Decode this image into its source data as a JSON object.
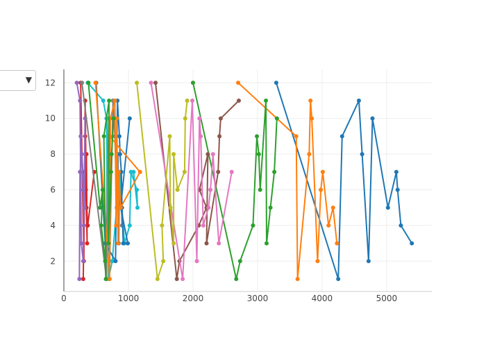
{
  "controls": {
    "dropdown": {
      "selected_label": "",
      "arrow_icon": "triangle-down-icon"
    }
  },
  "chart_data": {
    "type": "line",
    "title": "",
    "xlabel": "",
    "ylabel": "",
    "xlim": [
      0,
      5700
    ],
    "ylim": [
      0.3,
      12.75
    ],
    "x_ticks": [
      0,
      1000,
      2000,
      3000,
      4000,
      5000
    ],
    "y_ticks": [
      2,
      4,
      6,
      8,
      10,
      12
    ],
    "grid": true,
    "legend": "none",
    "series": [
      {
        "color": "#1f77b4",
        "points": [
          [
            3290,
            12
          ],
          [
            4250,
            1
          ],
          [
            4310,
            9
          ],
          [
            4570,
            11
          ],
          [
            4620,
            8
          ],
          [
            4720,
            2
          ],
          [
            4780,
            10
          ],
          [
            5020,
            5
          ],
          [
            5150,
            7
          ],
          [
            5170,
            6
          ],
          [
            5220,
            4
          ],
          [
            5390,
            3
          ]
        ]
      },
      {
        "color": "#ff7f0e",
        "points": [
          [
            2700,
            12
          ],
          [
            3600,
            9
          ],
          [
            3620,
            1
          ],
          [
            3800,
            8
          ],
          [
            3820,
            11
          ],
          [
            3840,
            10
          ],
          [
            3930,
            2
          ],
          [
            3980,
            6
          ],
          [
            4010,
            7
          ],
          [
            4100,
            4
          ],
          [
            4170,
            5
          ],
          [
            4230,
            3
          ]
        ]
      },
      {
        "color": "#2ca02c",
        "points": [
          [
            2000,
            12
          ],
          [
            2670,
            1
          ],
          [
            2730,
            2
          ],
          [
            2930,
            4
          ],
          [
            2990,
            9
          ],
          [
            3020,
            8
          ],
          [
            3040,
            6
          ],
          [
            3130,
            11
          ],
          [
            3140,
            3
          ],
          [
            3200,
            5
          ],
          [
            3260,
            7
          ],
          [
            3300,
            10
          ]
        ]
      },
      {
        "color": "#d62728",
        "points": [
          [
            260,
            12
          ],
          [
            310,
            2
          ],
          [
            330,
            11
          ],
          [
            350,
            5
          ],
          [
            330,
            9
          ],
          [
            300,
            1
          ],
          [
            320,
            7
          ],
          [
            350,
            8
          ],
          [
            360,
            3
          ],
          [
            340,
            6
          ],
          [
            370,
            4
          ],
          [
            470,
            7
          ]
        ]
      },
      {
        "color": "#9467bd",
        "points": [
          [
            200,
            12
          ],
          [
            250,
            11
          ],
          [
            270,
            3
          ],
          [
            300,
            2
          ],
          [
            330,
            10
          ],
          [
            320,
            5
          ],
          [
            280,
            8
          ],
          [
            250,
            7
          ],
          [
            240,
            1
          ],
          [
            260,
            9
          ],
          [
            300,
            6
          ],
          [
            310,
            4
          ]
        ]
      },
      {
        "color": "#8c564b",
        "points": [
          [
            1420,
            12
          ],
          [
            1750,
            1
          ],
          [
            1790,
            2
          ],
          [
            2090,
            4
          ],
          [
            2210,
            5
          ],
          [
            2100,
            6
          ],
          [
            2230,
            8
          ],
          [
            2210,
            3
          ],
          [
            2390,
            7
          ],
          [
            2410,
            9
          ],
          [
            2430,
            10
          ],
          [
            2710,
            11
          ]
        ]
      },
      {
        "color": "#e377c2",
        "points": [
          [
            1350,
            12
          ],
          [
            1840,
            1
          ],
          [
            1990,
            11
          ],
          [
            2060,
            2
          ],
          [
            2100,
            10
          ],
          [
            2120,
            9
          ],
          [
            2160,
            4
          ],
          [
            2240,
            5
          ],
          [
            2270,
            6
          ],
          [
            2310,
            8
          ],
          [
            2400,
            3
          ],
          [
            2600,
            7
          ]
        ]
      },
      {
        "color": "#7f7f7f",
        "points": [
          [
            280,
            12
          ],
          [
            660,
            1
          ],
          [
            670,
            10
          ],
          [
            710,
            2
          ],
          [
            760,
            11
          ],
          [
            790,
            9
          ],
          [
            820,
            5
          ],
          [
            840,
            8
          ],
          [
            850,
            3
          ],
          [
            860,
            6
          ],
          [
            880,
            7
          ],
          [
            900,
            4
          ]
        ]
      },
      {
        "color": "#bcbd22",
        "points": [
          [
            1130,
            12
          ],
          [
            1450,
            1
          ],
          [
            1540,
            2
          ],
          [
            1520,
            4
          ],
          [
            1640,
            9
          ],
          [
            1650,
            5
          ],
          [
            1700,
            3
          ],
          [
            1700,
            8
          ],
          [
            1760,
            6
          ],
          [
            1870,
            7
          ],
          [
            1880,
            10
          ],
          [
            1910,
            11
          ]
        ]
      },
      {
        "color": "#17becf",
        "points": [
          [
            370,
            12
          ],
          [
            610,
            11
          ],
          [
            660,
            10
          ],
          [
            690,
            1
          ],
          [
            750,
            2
          ],
          [
            860,
            7
          ],
          [
            940,
            3
          ],
          [
            1020,
            4
          ],
          [
            1040,
            7
          ],
          [
            1130,
            6
          ],
          [
            1140,
            5
          ],
          [
            1080,
            7
          ]
        ]
      },
      {
        "color": "#1f77b4",
        "points": [
          [
            500,
            12
          ],
          [
            640,
            3
          ],
          [
            800,
            2
          ],
          [
            830,
            11
          ],
          [
            860,
            9
          ],
          [
            870,
            8
          ],
          [
            890,
            7
          ],
          [
            900,
            5
          ],
          [
            920,
            3
          ],
          [
            990,
            3
          ],
          [
            880,
            5
          ],
          [
            1020,
            10
          ]
        ]
      },
      {
        "color": "#ff7f0e",
        "points": [
          [
            490,
            12
          ],
          [
            710,
            1
          ],
          [
            720,
            10
          ],
          [
            790,
            11
          ],
          [
            810,
            4
          ],
          [
            820,
            10
          ],
          [
            840,
            3
          ],
          [
            850,
            7
          ],
          [
            880,
            5
          ],
          [
            1180,
            7
          ],
          [
            710,
            9
          ],
          [
            700,
            3
          ]
        ]
      },
      {
        "color": "#2ca02c",
        "points": [
          [
            380,
            12
          ],
          [
            560,
            5
          ],
          [
            600,
            6
          ],
          [
            580,
            4
          ],
          [
            640,
            2
          ],
          [
            650,
            1
          ],
          [
            620,
            9
          ],
          [
            700,
            11
          ],
          [
            690,
            3
          ],
          [
            730,
            7
          ],
          [
            740,
            8
          ],
          [
            770,
            10
          ]
        ]
      }
    ]
  }
}
